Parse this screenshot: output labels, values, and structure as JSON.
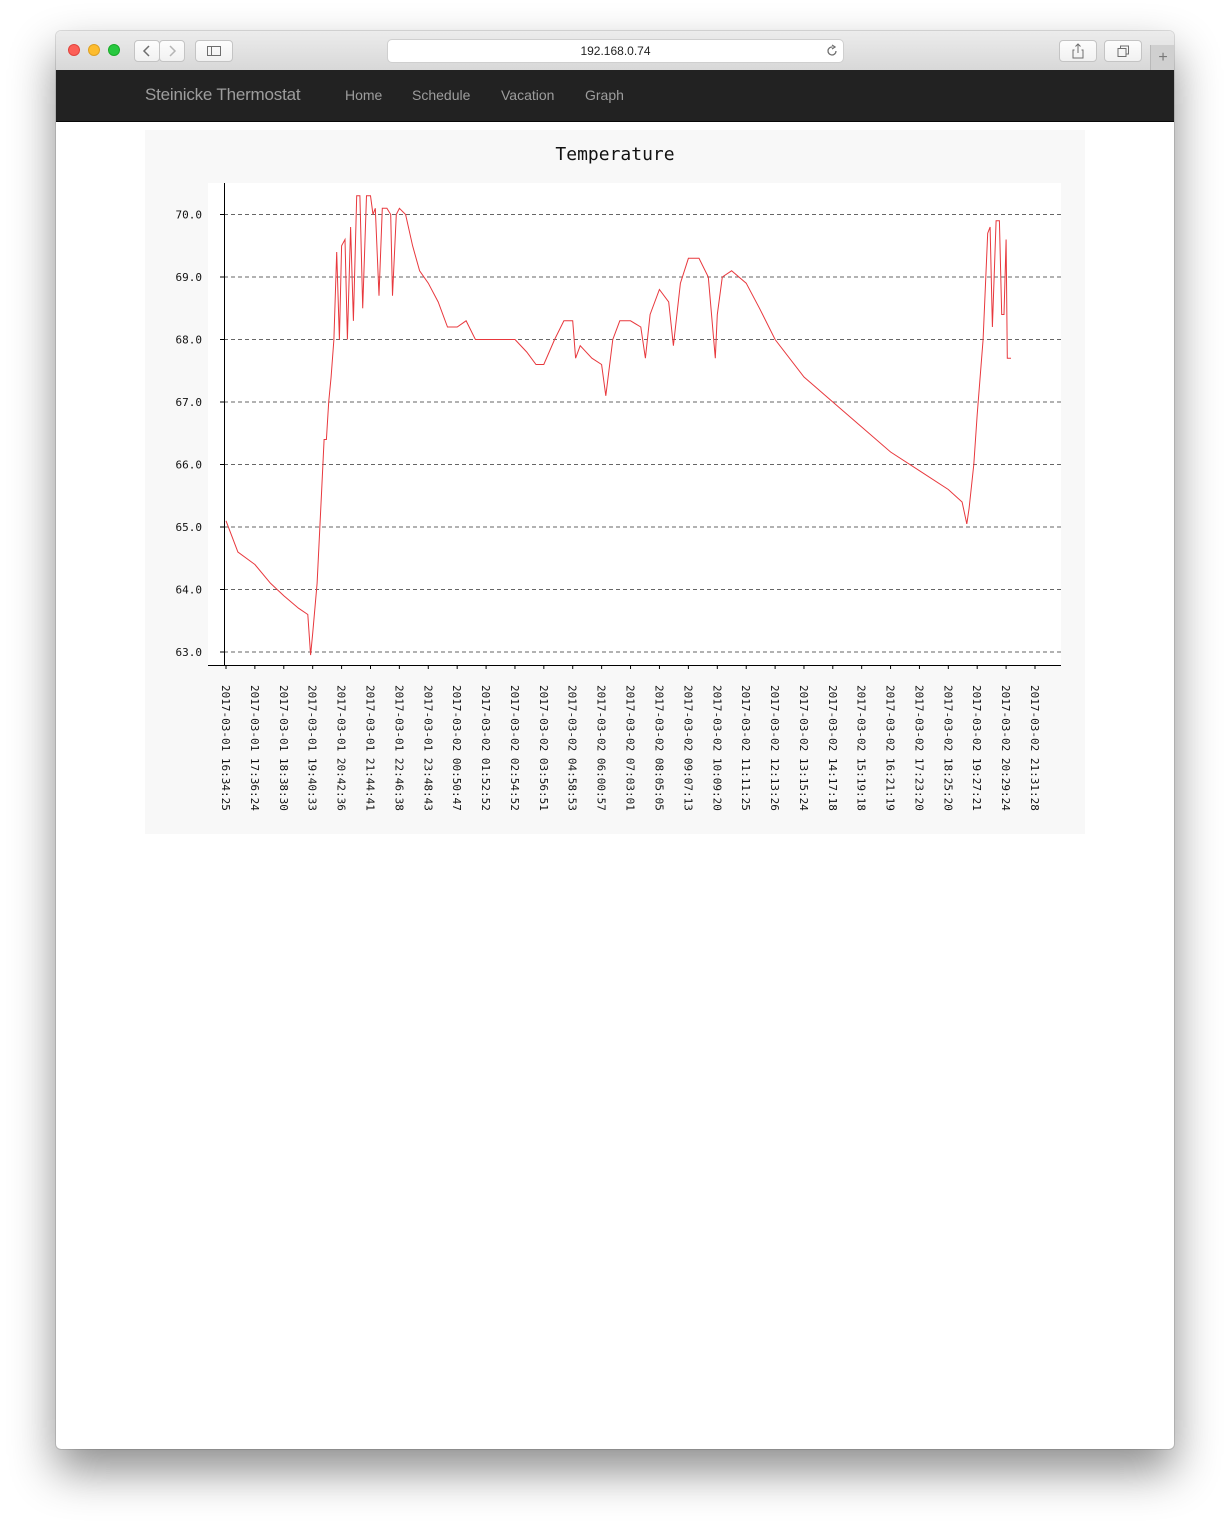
{
  "browser": {
    "url": "192.168.0.74"
  },
  "navbar": {
    "brand": "Steinicke Thermostat",
    "items": [
      {
        "label": "Home"
      },
      {
        "label": "Schedule"
      },
      {
        "label": "Vacation"
      },
      {
        "label": "Graph"
      }
    ]
  },
  "chart_data": {
    "type": "line",
    "title": "Temperature",
    "xlabel": "",
    "ylabel": "",
    "ylim": [
      62.8,
      70.5
    ],
    "y_ticks": [
      "63.0",
      "64.0",
      "65.0",
      "66.0",
      "67.0",
      "68.0",
      "69.0",
      "70.0"
    ],
    "grid": "horizontal dashed",
    "line_color": "#e8383d",
    "x_tick_labels": [
      "2017-03-01 16:34:25",
      "2017-03-01 17:36:24",
      "2017-03-01 18:38:30",
      "2017-03-01 19:40:33",
      "2017-03-01 20:42:36",
      "2017-03-01 21:44:41",
      "2017-03-01 22:46:38",
      "2017-03-01 23:48:43",
      "2017-03-02 00:50:47",
      "2017-03-02 01:52:52",
      "2017-03-02 02:54:52",
      "2017-03-02 03:56:51",
      "2017-03-02 04:58:53",
      "2017-03-02 06:00:57",
      "2017-03-02 07:03:01",
      "2017-03-02 08:05:05",
      "2017-03-02 09:07:13",
      "2017-03-02 10:09:20",
      "2017-03-02 11:11:25",
      "2017-03-02 12:13:26",
      "2017-03-02 13:15:24",
      "2017-03-02 14:17:18",
      "2017-03-02 15:19:18",
      "2017-03-02 16:21:19",
      "2017-03-02 17:23:20",
      "2017-03-02 18:25:20",
      "2017-03-02 19:27:21",
      "2017-03-02 20:29:24",
      "2017-03-02 21:31:28"
    ],
    "series": [
      {
        "points": [
          [
            "2017-03-01 16:34:25",
            65.1
          ],
          [
            "2017-03-01 17:00:00",
            64.6
          ],
          [
            "2017-03-01 17:36:24",
            64.4
          ],
          [
            "2017-03-01 18:10:00",
            64.1
          ],
          [
            "2017-03-01 18:38:30",
            63.9
          ],
          [
            "2017-03-01 19:10:00",
            63.7
          ],
          [
            "2017-03-01 19:30:00",
            63.6
          ],
          [
            "2017-03-01 19:36:00",
            62.95
          ],
          [
            "2017-03-01 19:40:33",
            63.3
          ],
          [
            "2017-03-01 19:50:00",
            64.1
          ],
          [
            "2017-03-01 20:00:00",
            65.6
          ],
          [
            "2017-03-01 20:05:00",
            66.4
          ],
          [
            "2017-03-01 20:10:00",
            66.4
          ],
          [
            "2017-03-01 20:15:00",
            67.0
          ],
          [
            "2017-03-01 20:20:00",
            67.4
          ],
          [
            "2017-03-01 20:26:00",
            68.0
          ],
          [
            "2017-03-01 20:32:00",
            69.4
          ],
          [
            "2017-03-01 20:38:00",
            68.0
          ],
          [
            "2017-03-01 20:42:36",
            69.5
          ],
          [
            "2017-03-01 20:50:00",
            69.6
          ],
          [
            "2017-03-01 20:55:00",
            68.0
          ],
          [
            "2017-03-01 21:02:00",
            69.8
          ],
          [
            "2017-03-01 21:08:00",
            68.3
          ],
          [
            "2017-03-01 21:15:00",
            70.3
          ],
          [
            "2017-03-01 21:22:00",
            70.3
          ],
          [
            "2017-03-01 21:28:00",
            68.5
          ],
          [
            "2017-03-01 21:36:00",
            70.3
          ],
          [
            "2017-03-01 21:44:41",
            70.3
          ],
          [
            "2017-03-01 21:50:00",
            70.0
          ],
          [
            "2017-03-01 21:55:00",
            70.1
          ],
          [
            "2017-03-01 22:03:00",
            68.7
          ],
          [
            "2017-03-01 22:10:00",
            70.1
          ],
          [
            "2017-03-01 22:20:00",
            70.1
          ],
          [
            "2017-03-01 22:28:00",
            70.0
          ],
          [
            "2017-03-01 22:32:00",
            68.7
          ],
          [
            "2017-03-01 22:40:00",
            70.0
          ],
          [
            "2017-03-01 22:46:38",
            70.1
          ],
          [
            "2017-03-01 23:00:00",
            70.0
          ],
          [
            "2017-03-01 23:15:00",
            69.5
          ],
          [
            "2017-03-01 23:30:00",
            69.1
          ],
          [
            "2017-03-01 23:48:43",
            68.9
          ],
          [
            "2017-03-02 00:10:00",
            68.6
          ],
          [
            "2017-03-02 00:30:00",
            68.2
          ],
          [
            "2017-03-02 00:50:47",
            68.2
          ],
          [
            "2017-03-02 01:10:00",
            68.3
          ],
          [
            "2017-03-02 01:30:00",
            68.0
          ],
          [
            "2017-03-02 01:52:52",
            68.0
          ],
          [
            "2017-03-02 02:10:00",
            68.0
          ],
          [
            "2017-03-02 02:30:00",
            68.0
          ],
          [
            "2017-03-02 02:54:52",
            68.0
          ],
          [
            "2017-03-02 03:20:00",
            67.8
          ],
          [
            "2017-03-02 03:40:00",
            67.6
          ],
          [
            "2017-03-02 03:56:51",
            67.6
          ],
          [
            "2017-03-02 04:20:00",
            68.0
          ],
          [
            "2017-03-02 04:40:00",
            68.3
          ],
          [
            "2017-03-02 04:58:53",
            68.3
          ],
          [
            "2017-03-02 05:05:00",
            67.7
          ],
          [
            "2017-03-02 05:15:00",
            67.9
          ],
          [
            "2017-03-02 05:40:00",
            67.7
          ],
          [
            "2017-03-02 06:00:57",
            67.6
          ],
          [
            "2017-03-02 06:10:00",
            67.1
          ],
          [
            "2017-03-02 06:25:00",
            68.0
          ],
          [
            "2017-03-02 06:40:00",
            68.3
          ],
          [
            "2017-03-02 07:03:01",
            68.3
          ],
          [
            "2017-03-02 07:25:00",
            68.2
          ],
          [
            "2017-03-02 07:35:00",
            67.7
          ],
          [
            "2017-03-02 07:45:00",
            68.4
          ],
          [
            "2017-03-02 08:05:05",
            68.8
          ],
          [
            "2017-03-02 08:25:00",
            68.6
          ],
          [
            "2017-03-02 08:35:00",
            67.9
          ],
          [
            "2017-03-02 08:50:00",
            68.9
          ],
          [
            "2017-03-02 09:07:13",
            69.3
          ],
          [
            "2017-03-02 09:30:00",
            69.3
          ],
          [
            "2017-03-02 09:50:00",
            69.0
          ],
          [
            "2017-03-02 10:05:00",
            67.7
          ],
          [
            "2017-03-02 10:09:20",
            68.4
          ],
          [
            "2017-03-02 10:20:00",
            69.0
          ],
          [
            "2017-03-02 10:40:00",
            69.1
          ],
          [
            "2017-03-02 11:11:25",
            68.9
          ],
          [
            "2017-03-02 11:40:00",
            68.5
          ],
          [
            "2017-03-02 12:13:26",
            68.0
          ],
          [
            "2017-03-02 13:15:24",
            67.4
          ],
          [
            "2017-03-02 14:17:18",
            67.0
          ],
          [
            "2017-03-02 15:19:18",
            66.6
          ],
          [
            "2017-03-02 16:21:19",
            66.2
          ],
          [
            "2017-03-02 17:23:20",
            65.9
          ],
          [
            "2017-03-02 18:25:20",
            65.6
          ],
          [
            "2017-03-02 18:55:00",
            65.4
          ],
          [
            "2017-03-02 19:05:00",
            65.05
          ],
          [
            "2017-03-02 19:10:00",
            65.3
          ],
          [
            "2017-03-02 19:20:00",
            66.0
          ],
          [
            "2017-03-02 19:27:21",
            66.8
          ],
          [
            "2017-03-02 19:40:00",
            68.0
          ],
          [
            "2017-03-02 19:50:00",
            69.7
          ],
          [
            "2017-03-02 19:55:00",
            69.8
          ],
          [
            "2017-03-02 20:00:00",
            68.2
          ],
          [
            "2017-03-02 20:08:00",
            69.9
          ],
          [
            "2017-03-02 20:15:00",
            69.9
          ],
          [
            "2017-03-02 20:20:00",
            68.4
          ],
          [
            "2017-03-02 20:25:00",
            68.4
          ],
          [
            "2017-03-02 20:29:24",
            69.6
          ],
          [
            "2017-03-02 20:32:00",
            67.7
          ],
          [
            "2017-03-02 20:40:00",
            67.7
          ]
        ]
      }
    ]
  }
}
